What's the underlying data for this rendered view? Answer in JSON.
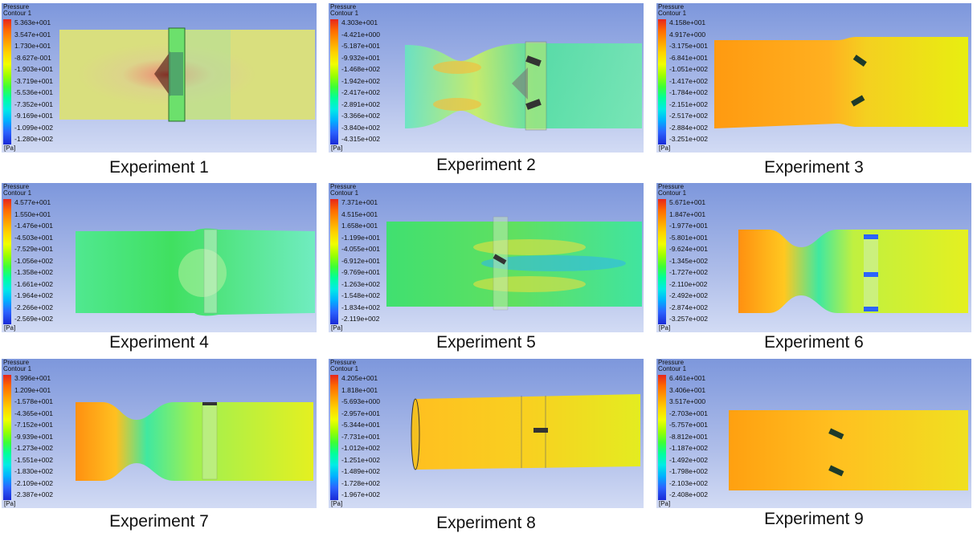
{
  "legend_title": "Pressure",
  "legend_subtitle": "Contour 1",
  "unit": "[Pa]",
  "experiments": [
    {
      "caption": "Experiment 1",
      "labels": [
        "5.363e+001",
        "3.547e+001",
        "1.730e+001",
        "-8.627e-001",
        "-1.903e+001",
        "-3.719e+001",
        "-5.536e+001",
        "-7.352e+001",
        "-9.169e+001",
        "-1.099e+002",
        "-1.280e+002"
      ]
    },
    {
      "caption": "Experiment 2",
      "labels": [
        "4.303e+001",
        "-4.421e+000",
        "-5.187e+001",
        "-9.932e+001",
        "-1.468e+002",
        "-1.942e+002",
        "-2.417e+002",
        "-2.891e+002",
        "-3.366e+002",
        "-3.840e+002",
        "-4.315e+002"
      ]
    },
    {
      "caption": "Experiment 3",
      "labels": [
        "4.158e+001",
        "4.917e+000",
        "-3.175e+001",
        "-6.841e+001",
        "-1.051e+002",
        "-1.417e+002",
        "-1.784e+002",
        "-2.151e+002",
        "-2.517e+002",
        "-2.884e+002",
        "-3.251e+002"
      ]
    },
    {
      "caption": "Experiment 4",
      "labels": [
        "4.577e+001",
        "1.550e+001",
        "-1.476e+001",
        "-4.503e+001",
        "-7.529e+001",
        "-1.056e+002",
        "-1.358e+002",
        "-1.661e+002",
        "-1.964e+002",
        "-2.266e+002",
        "-2.569e+002"
      ]
    },
    {
      "caption": "Experiment 5",
      "labels": [
        "7.371e+001",
        "4.515e+001",
        "1.658e+001",
        "-1.199e+001",
        "-4.055e+001",
        "-6.912e+001",
        "-9.769e+001",
        "-1.263e+002",
        "-1.548e+002",
        "-1.834e+002",
        "-2.119e+002"
      ]
    },
    {
      "caption": "Experiment 6",
      "labels": [
        "5.671e+001",
        "1.847e+001",
        "-1.977e+001",
        "-5.801e+001",
        "-9.624e+001",
        "-1.345e+002",
        "-1.727e+002",
        "-2.110e+002",
        "-2.492e+002",
        "-2.874e+002",
        "-3.257e+002"
      ]
    },
    {
      "caption": "Experiment 7",
      "labels": [
        "3.996e+001",
        "1.209e+001",
        "-1.578e+001",
        "-4.365e+001",
        "-7.152e+001",
        "-9.939e+001",
        "-1.273e+002",
        "-1.551e+002",
        "-1.830e+002",
        "-2.109e+002",
        "-2.387e+002"
      ]
    },
    {
      "caption": "Experiment 8",
      "labels": [
        "4.205e+001",
        "1.818e+001",
        "-5.693e+000",
        "-2.957e+001",
        "-5.344e+001",
        "-7.731e+001",
        "-1.012e+002",
        "-1.251e+002",
        "-1.489e+002",
        "-1.728e+002",
        "-1.967e+002"
      ]
    },
    {
      "caption": "Experiment 9",
      "labels": [
        "6.461e+001",
        "3.406e+001",
        "3.517e+000",
        "-2.703e+001",
        "-5.757e+001",
        "-8.812e+001",
        "-1.187e+002",
        "-1.492e+002",
        "-1.798e+002",
        "-2.103e+002",
        "-2.408e+002"
      ]
    }
  ]
}
